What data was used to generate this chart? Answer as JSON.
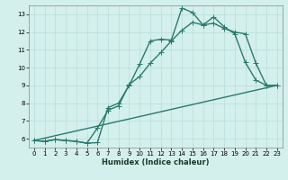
{
  "title": "",
  "xlabel": "Humidex (Indice chaleur)",
  "ylabel": "",
  "bg_color": "#d4f0ec",
  "grid_color": "#b8ddd8",
  "line_color": "#2a7a6e",
  "xlim": [
    -0.5,
    23.5
  ],
  "ylim": [
    5.5,
    13.5
  ],
  "xticks": [
    0,
    1,
    2,
    3,
    4,
    5,
    6,
    7,
    8,
    9,
    10,
    11,
    12,
    13,
    14,
    15,
    16,
    17,
    18,
    19,
    20,
    21,
    22,
    23
  ],
  "yticks": [
    6,
    7,
    8,
    9,
    10,
    11,
    12,
    13
  ],
  "line1_x": [
    0,
    1,
    2,
    3,
    4,
    5,
    6,
    7,
    8,
    9,
    10,
    11,
    12,
    13,
    14,
    15,
    16,
    17,
    18,
    19,
    20,
    21,
    22,
    23
  ],
  "line1_y": [
    5.9,
    5.85,
    5.95,
    5.9,
    5.85,
    5.75,
    5.78,
    7.75,
    8.0,
    9.0,
    10.2,
    11.5,
    11.6,
    11.55,
    13.35,
    13.1,
    12.4,
    12.85,
    12.3,
    11.9,
    10.3,
    9.3,
    9.0,
    9.0
  ],
  "line2_x": [
    0,
    1,
    2,
    3,
    4,
    5,
    6,
    7,
    8,
    9,
    10,
    11,
    12,
    13,
    14,
    15,
    16,
    17,
    18,
    19,
    20,
    21,
    22,
    23
  ],
  "line2_y": [
    5.9,
    5.85,
    5.95,
    5.9,
    5.85,
    5.75,
    6.6,
    7.6,
    7.85,
    9.05,
    9.5,
    10.25,
    10.85,
    11.5,
    12.1,
    12.55,
    12.4,
    12.5,
    12.2,
    12.0,
    11.9,
    10.25,
    9.0,
    9.0
  ],
  "line3_x": [
    0,
    23
  ],
  "line3_y": [
    5.9,
    9.0
  ],
  "marker_size": 3,
  "linewidth": 1.0,
  "xlabel_fontsize": 6,
  "tick_fontsize": 5
}
